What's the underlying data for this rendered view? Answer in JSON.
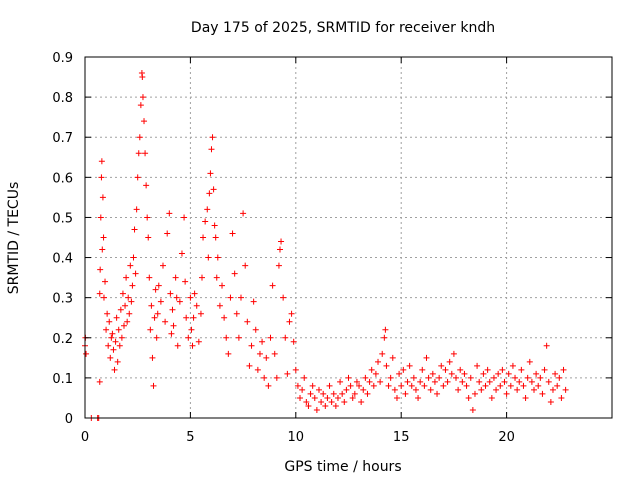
{
  "chart_data": {
    "type": "scatter",
    "title": "Day 175 of 2025, SRMTID for receiver kndh",
    "xlabel": "GPS time / hours",
    "ylabel": "SRMTID / TECUs",
    "xlim": [
      0,
      25
    ],
    "ylim": [
      0,
      0.9
    ],
    "xticks": [
      0,
      5,
      10,
      15,
      20
    ],
    "xtick_labels": [
      "0",
      "5",
      "10",
      "15",
      "20"
    ],
    "yticks": [
      0,
      0.1,
      0.2,
      0.3,
      0.4,
      0.5,
      0.6,
      0.7,
      0.8,
      0.9
    ],
    "ytick_labels": [
      "0",
      "0.1",
      "0.2",
      "0.3",
      "0.4",
      "0.5",
      "0.6",
      "0.7",
      "0.8",
      "0.9"
    ],
    "grid": true,
    "marker": "+",
    "series": [
      {
        "name": "SRMTID",
        "color": "#ff0000",
        "points": [
          [
            0.0,
            0.18
          ],
          [
            0.02,
            0.2
          ],
          [
            0.05,
            0.16
          ],
          [
            0.3,
            0.0
          ],
          [
            0.6,
            0.0
          ],
          [
            0.65,
            0.0
          ],
          [
            0.7,
            0.09
          ],
          [
            0.7,
            0.31
          ],
          [
            0.72,
            0.37
          ],
          [
            0.75,
            0.5
          ],
          [
            0.78,
            0.6
          ],
          [
            0.8,
            0.64
          ],
          [
            0.82,
            0.42
          ],
          [
            0.85,
            0.55
          ],
          [
            0.88,
            0.45
          ],
          [
            0.9,
            0.3
          ],
          [
            0.95,
            0.34
          ],
          [
            1.0,
            0.22
          ],
          [
            1.05,
            0.26
          ],
          [
            1.1,
            0.18
          ],
          [
            1.15,
            0.24
          ],
          [
            1.2,
            0.15
          ],
          [
            1.25,
            0.2
          ],
          [
            1.3,
            0.21
          ],
          [
            1.35,
            0.17
          ],
          [
            1.4,
            0.12
          ],
          [
            1.45,
            0.19
          ],
          [
            1.5,
            0.25
          ],
          [
            1.55,
            0.14
          ],
          [
            1.6,
            0.22
          ],
          [
            1.65,
            0.18
          ],
          [
            1.7,
            0.27
          ],
          [
            1.75,
            0.2
          ],
          [
            1.8,
            0.31
          ],
          [
            1.85,
            0.23
          ],
          [
            1.9,
            0.28
          ],
          [
            1.95,
            0.35
          ],
          [
            2.0,
            0.24
          ],
          [
            2.05,
            0.3
          ],
          [
            2.1,
            0.26
          ],
          [
            2.15,
            0.38
          ],
          [
            2.2,
            0.29
          ],
          [
            2.25,
            0.33
          ],
          [
            2.3,
            0.4
          ],
          [
            2.35,
            0.47
          ],
          [
            2.4,
            0.36
          ],
          [
            2.45,
            0.52
          ],
          [
            2.5,
            0.6
          ],
          [
            2.55,
            0.66
          ],
          [
            2.6,
            0.7
          ],
          [
            2.65,
            0.78
          ],
          [
            2.7,
            0.86
          ],
          [
            2.72,
            0.85
          ],
          [
            2.75,
            0.8
          ],
          [
            2.8,
            0.74
          ],
          [
            2.85,
            0.66
          ],
          [
            2.9,
            0.58
          ],
          [
            2.95,
            0.5
          ],
          [
            3.0,
            0.45
          ],
          [
            3.05,
            0.35
          ],
          [
            3.1,
            0.22
          ],
          [
            3.15,
            0.28
          ],
          [
            3.2,
            0.15
          ],
          [
            3.25,
            0.08
          ],
          [
            3.3,
            0.25
          ],
          [
            3.35,
            0.32
          ],
          [
            3.4,
            0.2
          ],
          [
            3.45,
            0.26
          ],
          [
            3.5,
            0.33
          ],
          [
            3.6,
            0.29
          ],
          [
            3.7,
            0.38
          ],
          [
            3.8,
            0.24
          ],
          [
            3.9,
            0.46
          ],
          [
            4.0,
            0.51
          ],
          [
            4.05,
            0.31
          ],
          [
            4.1,
            0.21
          ],
          [
            4.15,
            0.27
          ],
          [
            4.2,
            0.23
          ],
          [
            4.3,
            0.35
          ],
          [
            4.35,
            0.3
          ],
          [
            4.4,
            0.18
          ],
          [
            4.5,
            0.29
          ],
          [
            4.6,
            0.41
          ],
          [
            4.7,
            0.5
          ],
          [
            4.75,
            0.34
          ],
          [
            4.8,
            0.25
          ],
          [
            4.9,
            0.2
          ],
          [
            5.0,
            0.3
          ],
          [
            5.05,
            0.22
          ],
          [
            5.1,
            0.18
          ],
          [
            5.15,
            0.25
          ],
          [
            5.2,
            0.31
          ],
          [
            5.3,
            0.28
          ],
          [
            5.4,
            0.19
          ],
          [
            5.5,
            0.26
          ],
          [
            5.55,
            0.35
          ],
          [
            5.6,
            0.45
          ],
          [
            5.7,
            0.49
          ],
          [
            5.8,
            0.52
          ],
          [
            5.85,
            0.4
          ],
          [
            5.9,
            0.56
          ],
          [
            5.95,
            0.61
          ],
          [
            6.0,
            0.67
          ],
          [
            6.05,
            0.7
          ],
          [
            6.1,
            0.57
          ],
          [
            6.15,
            0.48
          ],
          [
            6.2,
            0.45
          ],
          [
            6.25,
            0.35
          ],
          [
            6.3,
            0.4
          ],
          [
            6.4,
            0.28
          ],
          [
            6.5,
            0.33
          ],
          [
            6.6,
            0.25
          ],
          [
            6.7,
            0.2
          ],
          [
            6.8,
            0.16
          ],
          [
            6.9,
            0.3
          ],
          [
            7.0,
            0.46
          ],
          [
            7.1,
            0.36
          ],
          [
            7.2,
            0.26
          ],
          [
            7.3,
            0.2
          ],
          [
            7.4,
            0.3
          ],
          [
            7.5,
            0.51
          ],
          [
            7.6,
            0.38
          ],
          [
            7.7,
            0.24
          ],
          [
            7.8,
            0.13
          ],
          [
            7.9,
            0.18
          ],
          [
            8.0,
            0.29
          ],
          [
            8.1,
            0.22
          ],
          [
            8.2,
            0.12
          ],
          [
            8.3,
            0.16
          ],
          [
            8.4,
            0.19
          ],
          [
            8.5,
            0.1
          ],
          [
            8.6,
            0.15
          ],
          [
            8.7,
            0.08
          ],
          [
            8.8,
            0.2
          ],
          [
            8.9,
            0.33
          ],
          [
            9.0,
            0.16
          ],
          [
            9.1,
            0.1
          ],
          [
            9.2,
            0.38
          ],
          [
            9.25,
            0.42
          ],
          [
            9.3,
            0.44
          ],
          [
            9.4,
            0.3
          ],
          [
            9.5,
            0.2
          ],
          [
            9.6,
            0.11
          ],
          [
            9.7,
            0.24
          ],
          [
            9.8,
            0.26
          ],
          [
            9.9,
            0.19
          ],
          [
            10.0,
            0.12
          ],
          [
            10.1,
            0.08
          ],
          [
            10.2,
            0.05
          ],
          [
            10.3,
            0.07
          ],
          [
            10.4,
            0.1
          ],
          [
            10.5,
            0.04
          ],
          [
            10.6,
            0.03
          ],
          [
            10.7,
            0.06
          ],
          [
            10.8,
            0.08
          ],
          [
            10.9,
            0.05
          ],
          [
            11.0,
            0.02
          ],
          [
            11.1,
            0.07
          ],
          [
            11.2,
            0.04
          ],
          [
            11.3,
            0.06
          ],
          [
            11.4,
            0.03
          ],
          [
            11.5,
            0.05
          ],
          [
            11.6,
            0.08
          ],
          [
            11.7,
            0.04
          ],
          [
            11.8,
            0.06
          ],
          [
            11.9,
            0.03
          ],
          [
            12.0,
            0.05
          ],
          [
            12.1,
            0.09
          ],
          [
            12.2,
            0.06
          ],
          [
            12.3,
            0.04
          ],
          [
            12.4,
            0.07
          ],
          [
            12.5,
            0.1
          ],
          [
            12.6,
            0.08
          ],
          [
            12.7,
            0.05
          ],
          [
            12.8,
            0.06
          ],
          [
            12.9,
            0.09
          ],
          [
            13.0,
            0.08
          ],
          [
            13.1,
            0.04
          ],
          [
            13.2,
            0.07
          ],
          [
            13.3,
            0.1
          ],
          [
            13.4,
            0.06
          ],
          [
            13.5,
            0.09
          ],
          [
            13.6,
            0.12
          ],
          [
            13.7,
            0.08
          ],
          [
            13.8,
            0.11
          ],
          [
            13.9,
            0.14
          ],
          [
            14.0,
            0.09
          ],
          [
            14.1,
            0.16
          ],
          [
            14.2,
            0.2
          ],
          [
            14.25,
            0.22
          ],
          [
            14.3,
            0.13
          ],
          [
            14.4,
            0.08
          ],
          [
            14.5,
            0.1
          ],
          [
            14.6,
            0.15
          ],
          [
            14.7,
            0.07
          ],
          [
            14.8,
            0.05
          ],
          [
            14.9,
            0.11
          ],
          [
            15.0,
            0.08
          ],
          [
            15.1,
            0.12
          ],
          [
            15.2,
            0.06
          ],
          [
            15.3,
            0.09
          ],
          [
            15.4,
            0.13
          ],
          [
            15.5,
            0.08
          ],
          [
            15.6,
            0.1
          ],
          [
            15.7,
            0.07
          ],
          [
            15.8,
            0.05
          ],
          [
            15.9,
            0.09
          ],
          [
            16.0,
            0.12
          ],
          [
            16.1,
            0.08
          ],
          [
            16.2,
            0.15
          ],
          [
            16.3,
            0.1
          ],
          [
            16.4,
            0.07
          ],
          [
            16.5,
            0.11
          ],
          [
            16.6,
            0.09
          ],
          [
            16.7,
            0.06
          ],
          [
            16.8,
            0.1
          ],
          [
            16.9,
            0.13
          ],
          [
            17.0,
            0.08
          ],
          [
            17.1,
            0.12
          ],
          [
            17.2,
            0.09
          ],
          [
            17.3,
            0.14
          ],
          [
            17.4,
            0.11
          ],
          [
            17.5,
            0.16
          ],
          [
            17.6,
            0.1
          ],
          [
            17.7,
            0.07
          ],
          [
            17.8,
            0.12
          ],
          [
            17.9,
            0.09
          ],
          [
            18.0,
            0.11
          ],
          [
            18.1,
            0.08
          ],
          [
            18.2,
            0.05
          ],
          [
            18.3,
            0.1
          ],
          [
            18.4,
            0.02
          ],
          [
            18.5,
            0.06
          ],
          [
            18.6,
            0.13
          ],
          [
            18.7,
            0.09
          ],
          [
            18.8,
            0.07
          ],
          [
            18.9,
            0.11
          ],
          [
            19.0,
            0.08
          ],
          [
            19.1,
            0.12
          ],
          [
            19.2,
            0.09
          ],
          [
            19.3,
            0.05
          ],
          [
            19.4,
            0.1
          ],
          [
            19.5,
            0.07
          ],
          [
            19.6,
            0.11
          ],
          [
            19.7,
            0.08
          ],
          [
            19.8,
            0.12
          ],
          [
            19.9,
            0.09
          ],
          [
            20.0,
            0.06
          ],
          [
            20.1,
            0.11
          ],
          [
            20.2,
            0.08
          ],
          [
            20.3,
            0.13
          ],
          [
            20.4,
            0.1
          ],
          [
            20.5,
            0.07
          ],
          [
            20.6,
            0.09
          ],
          [
            20.7,
            0.12
          ],
          [
            20.8,
            0.08
          ],
          [
            20.9,
            0.05
          ],
          [
            21.0,
            0.1
          ],
          [
            21.1,
            0.14
          ],
          [
            21.2,
            0.09
          ],
          [
            21.3,
            0.07
          ],
          [
            21.4,
            0.11
          ],
          [
            21.5,
            0.08
          ],
          [
            21.6,
            0.1
          ],
          [
            21.7,
            0.06
          ],
          [
            21.8,
            0.12
          ],
          [
            21.9,
            0.18
          ],
          [
            22.0,
            0.09
          ],
          [
            22.1,
            0.04
          ],
          [
            22.2,
            0.07
          ],
          [
            22.3,
            0.11
          ],
          [
            22.4,
            0.08
          ],
          [
            22.5,
            0.1
          ],
          [
            22.6,
            0.05
          ],
          [
            22.7,
            0.12
          ],
          [
            22.8,
            0.07
          ]
        ]
      }
    ]
  }
}
